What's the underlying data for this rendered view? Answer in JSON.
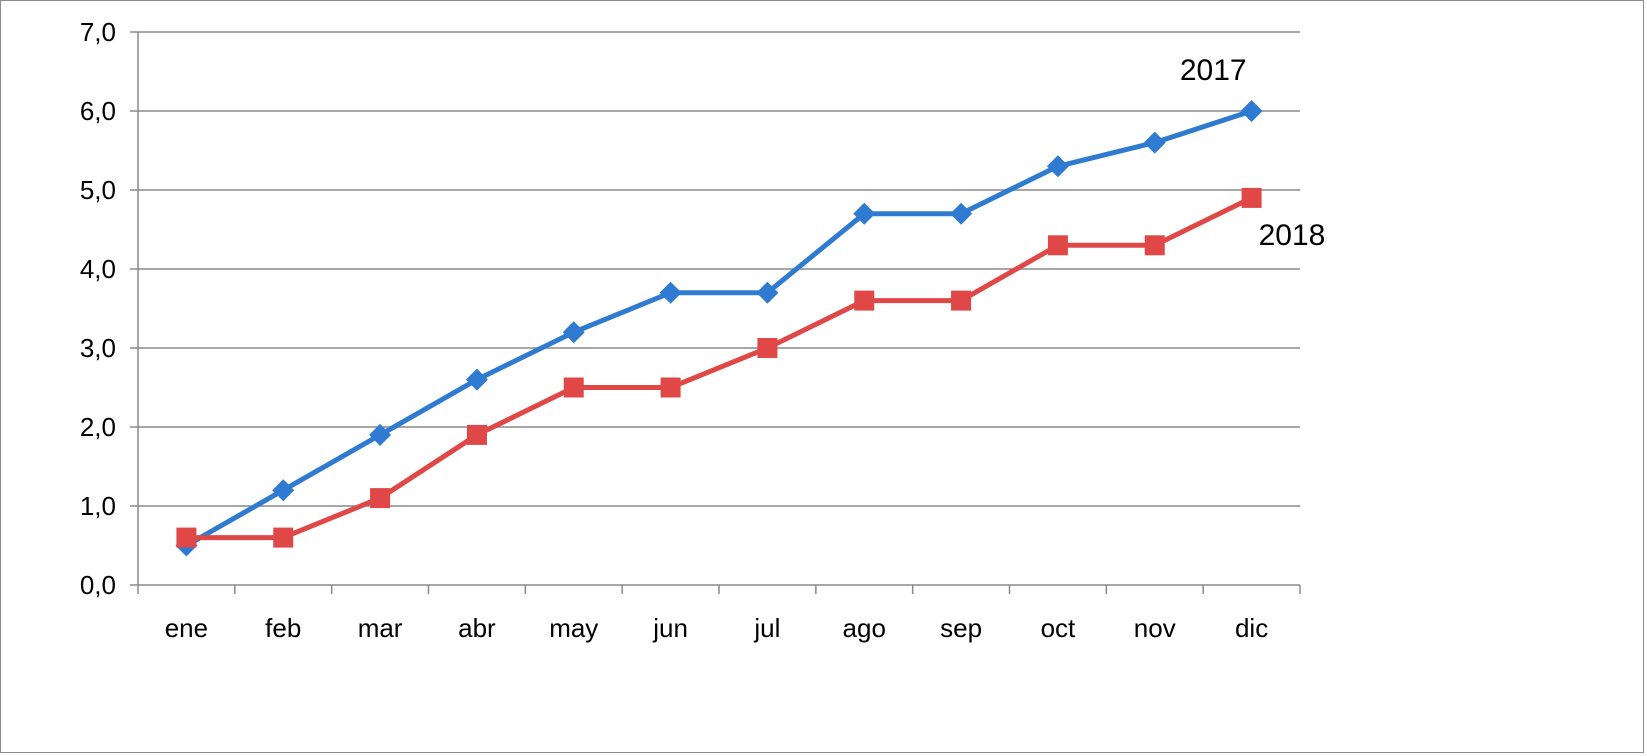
{
  "chart_data": {
    "type": "line",
    "categories": [
      "ene",
      "feb",
      "mar",
      "abr",
      "may",
      "jun",
      "jul",
      "ago",
      "sep",
      "oct",
      "nov",
      "dic"
    ],
    "series": [
      {
        "name": "2017",
        "color": "#2e7bd1",
        "marker": "diamond",
        "values": [
          0.5,
          1.2,
          1.9,
          2.6,
          3.2,
          3.7,
          3.7,
          4.7,
          4.7,
          5.3,
          5.6,
          6.0
        ]
      },
      {
        "name": "2018",
        "color": "#e04848",
        "marker": "square",
        "values": [
          0.6,
          0.6,
          1.1,
          1.9,
          2.5,
          2.5,
          3.0,
          3.6,
          3.6,
          4.3,
          4.3,
          4.9
        ]
      }
    ],
    "ylim": [
      0,
      7
    ],
    "y_ticks": [
      "0,0",
      "1,0",
      "2,0",
      "3,0",
      "4,0",
      "5,0",
      "6,0",
      "7,0"
    ],
    "grid": "horizontal",
    "legend": "inline labels near series ends"
  }
}
